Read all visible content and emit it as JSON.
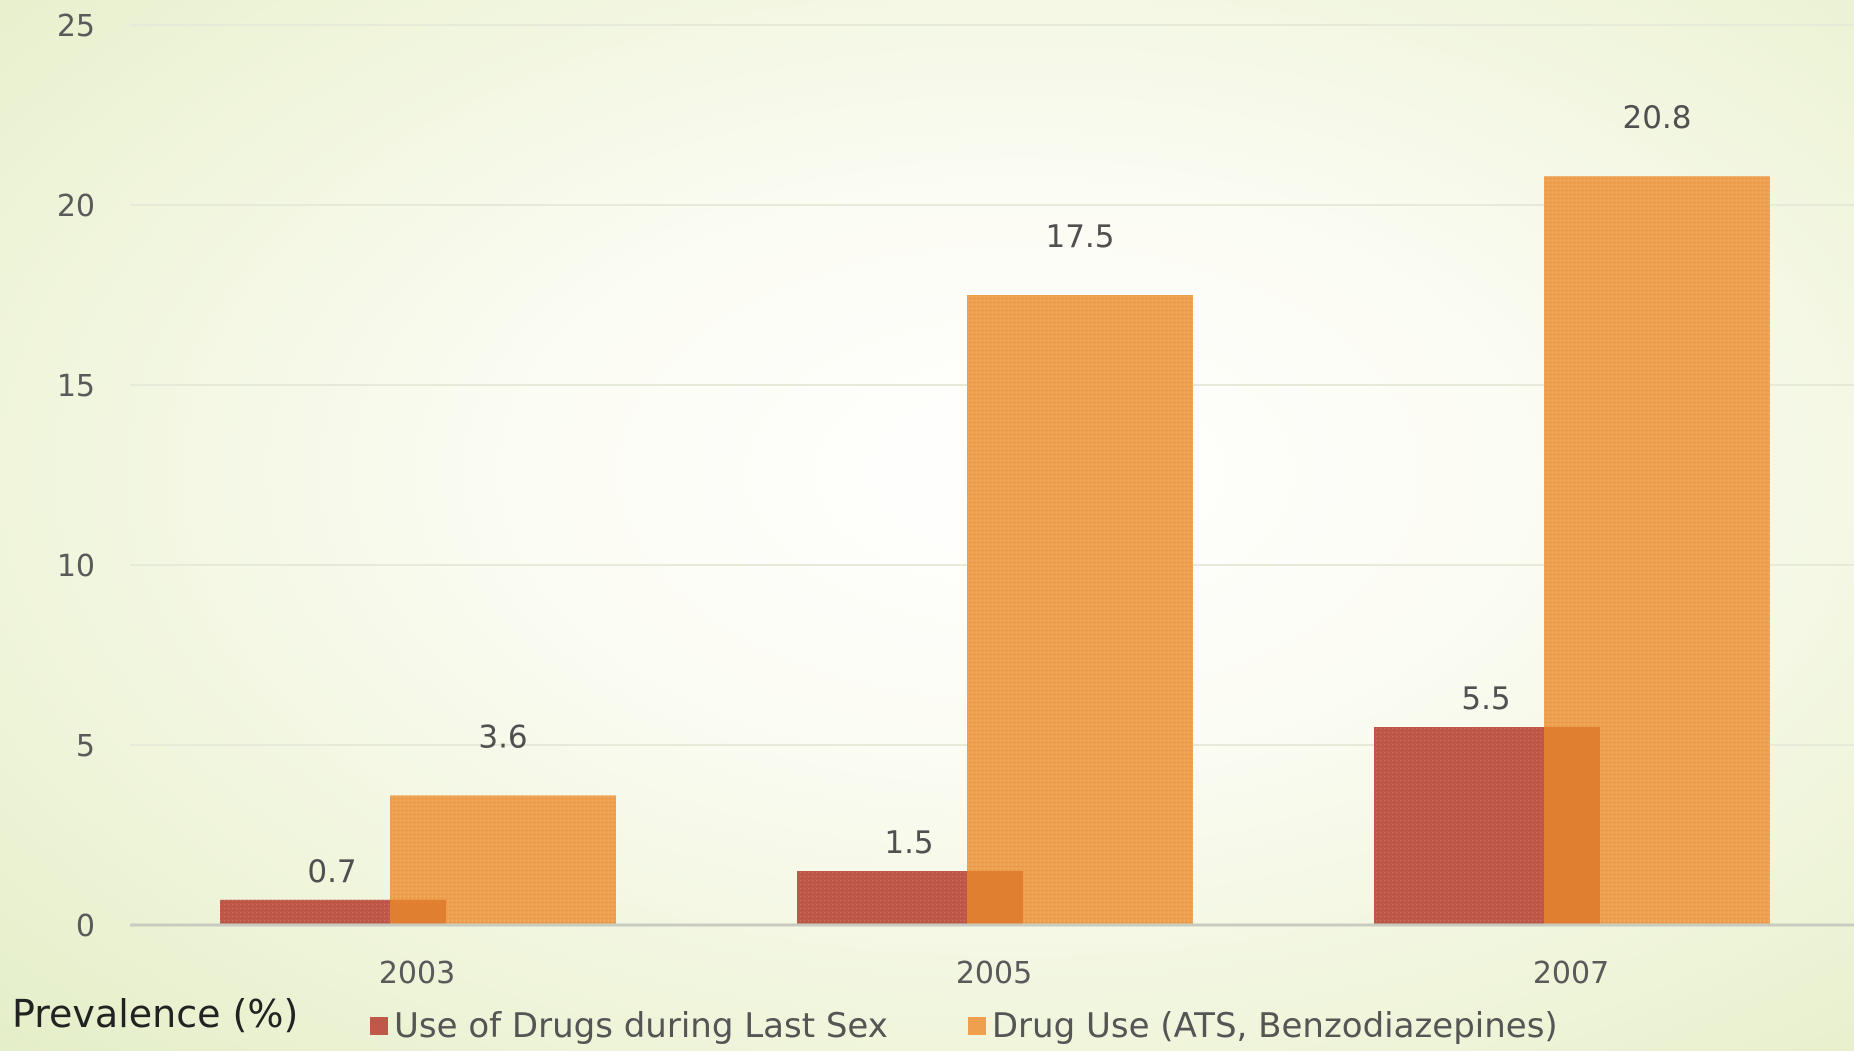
{
  "chart_data": {
    "type": "bar",
    "categories": [
      "2003",
      "2005",
      "2007"
    ],
    "series": [
      {
        "name": "Use of Drugs during Last Sex",
        "values": [
          0.7,
          1.5,
          5.5
        ],
        "color": "#c0584a"
      },
      {
        "name": "Drug Use (ATS, Benzodiazepines)",
        "values": [
          3.6,
          17.5,
          20.8
        ],
        "color": "#eea04f"
      }
    ],
    "overlap_color": "#df7f2f",
    "ylabel": "Prevalence (%)",
    "xlabel": "",
    "ylim": [
      0,
      25
    ],
    "yticks": [
      "0",
      "5",
      "10",
      "15",
      "20",
      "25"
    ],
    "data_labels": [
      [
        "0.7",
        "1.5",
        "5.5"
      ],
      [
        "3.6",
        "17.5",
        "20.8"
      ]
    ],
    "grid": true,
    "legend_position": "bottom"
  }
}
